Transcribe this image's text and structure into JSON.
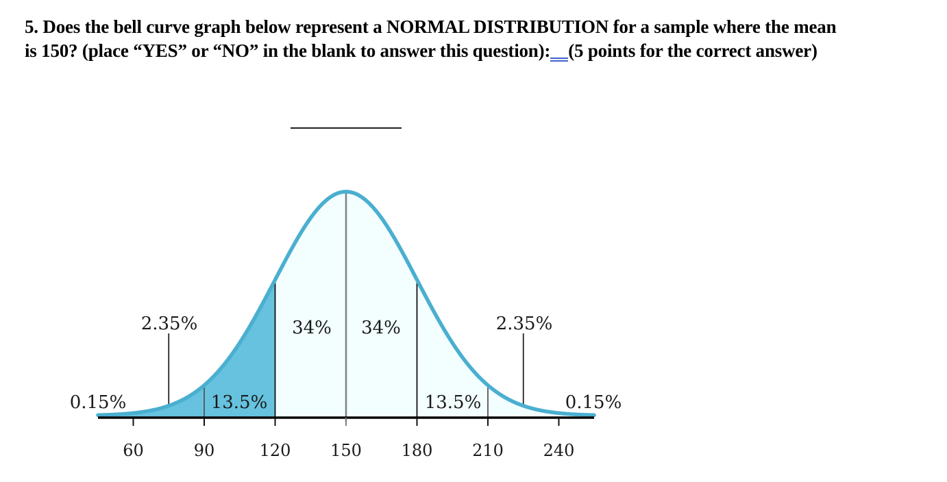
{
  "question": {
    "line1": "5.  Does the bell curve graph below represent a NORMAL DISTRIBUTION for a sample where the mean",
    "line2_before": "is 150?  (place “YES” or “NO” in the blank to answer this question):",
    "line2_after": "(5 points for the correct answer)"
  },
  "answer_blank": "",
  "colors": {
    "curve": "#4aafd0",
    "dark_fill": "#66c2de",
    "light_fill": "#f3feff",
    "axis": "#000000",
    "mean_line": "#808080"
  },
  "chart_data": {
    "type": "area",
    "title": "",
    "xlabel": "",
    "ylabel": "",
    "mean": 150,
    "sd": 30,
    "xlim": [
      45,
      255
    ],
    "x_ticks": [
      60,
      90,
      120,
      150,
      180,
      210,
      240
    ],
    "x_tick_labels": [
      "60",
      "90",
      "120",
      "150",
      "180",
      "210",
      "240"
    ],
    "shaded_dark_range": [
      45,
      120
    ],
    "shaded_light_range": [
      120,
      255
    ],
    "region_labels": [
      {
        "text": "0.15%",
        "region": [
          null,
          60
        ],
        "position": "far-left"
      },
      {
        "text": "2.35%",
        "region": [
          60,
          90
        ],
        "leader_at": 75
      },
      {
        "text": "13.5%",
        "region": [
          90,
          120
        ]
      },
      {
        "text": "34%",
        "region": [
          120,
          150
        ]
      },
      {
        "text": "34%",
        "region": [
          150,
          180
        ]
      },
      {
        "text": "13.5%",
        "region": [
          180,
          210
        ]
      },
      {
        "text": "2.35%",
        "region": [
          210,
          240
        ],
        "leader_at": 225
      },
      {
        "text": "0.15%",
        "region": [
          240,
          null
        ],
        "position": "far-right"
      }
    ],
    "divider_lines": [
      90,
      120,
      150,
      180,
      210
    ],
    "grid": false,
    "legend": "none"
  }
}
